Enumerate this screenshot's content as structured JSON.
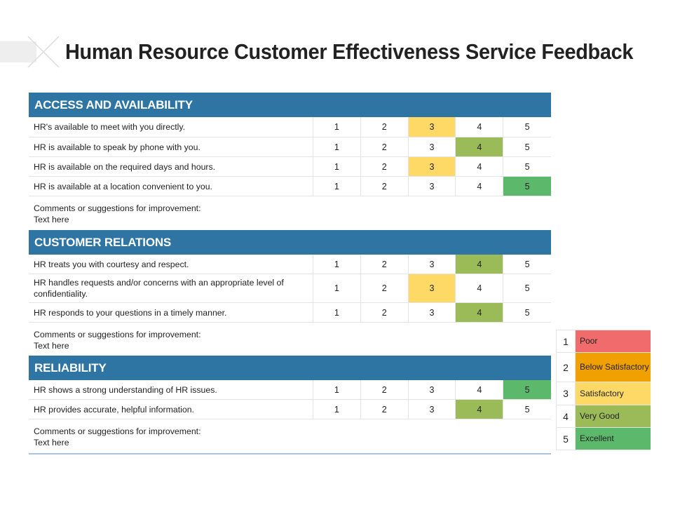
{
  "title": "Human Resource Customer Effectiveness Service Feedback",
  "scale": [
    "1",
    "2",
    "3",
    "4",
    "5"
  ],
  "sections": [
    {
      "header": "ACCESS AND AVAILABILITY",
      "questions": [
        {
          "text": "HR's available to meet with you directly.",
          "selected": 3
        },
        {
          "text": "HR is available to speak by phone with you.",
          "selected": 4
        },
        {
          "text": "HR is available on the required days and hours.",
          "selected": 3
        },
        {
          "text": "HR is available at a location convenient to you.",
          "selected": 5
        }
      ],
      "comments_label": "Comments or suggestions for improvement:",
      "comments_text": "Text here"
    },
    {
      "header": "CUSTOMER RELATIONS",
      "questions": [
        {
          "text": "HR treats you with courtesy and respect.",
          "selected": 4
        },
        {
          "text": "HR handles requests and/or concerns with an appropriate level of confidentiality.",
          "selected": 3
        },
        {
          "text": "HR responds to your questions in a timely manner.",
          "selected": 4
        }
      ],
      "comments_label": "Comments or suggestions for improvement:",
      "comments_text": "Text here"
    },
    {
      "header": "RELIABILITY",
      "questions": [
        {
          "text": "HR shows a strong understanding of HR issues.",
          "selected": 5
        },
        {
          "text": "HR provides accurate, helpful information.",
          "selected": 4
        }
      ],
      "comments_label": "Comments or suggestions for improvement:",
      "comments_text": "Text here"
    }
  ],
  "rating_colors": {
    "1": "#f06b6b",
    "2": "#f0a000",
    "3": "#ffd966",
    "4": "#9bbb59",
    "5": "#5cb86a"
  },
  "legend": [
    {
      "num": "1",
      "label": "Poor",
      "color": "#f06b6b"
    },
    {
      "num": "2",
      "label": "Below Satisfactory",
      "color": "#f0a000"
    },
    {
      "num": "3",
      "label": "Satisfactory",
      "color": "#ffd966"
    },
    {
      "num": "4",
      "label": "Very Good",
      "color": "#9bbb59"
    },
    {
      "num": "5",
      "label": "Excellent",
      "color": "#5cb86a"
    }
  ]
}
